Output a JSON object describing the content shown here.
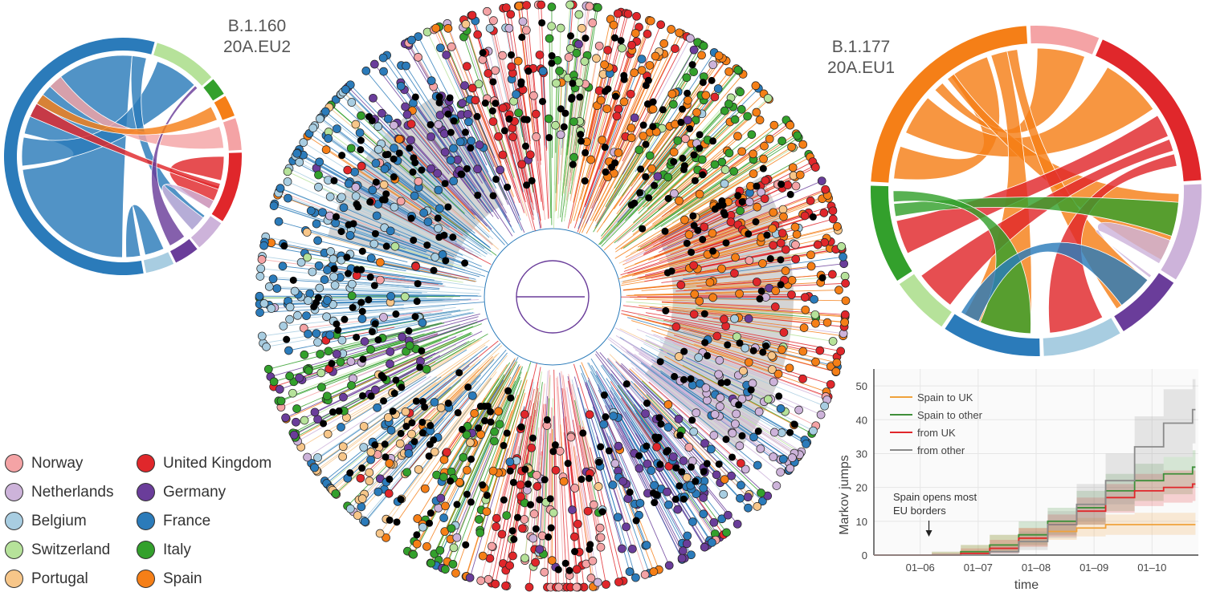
{
  "colors": {
    "Norway": "#f4a3a5",
    "Netherlands": "#cdb3da",
    "Belgium": "#a8cde1",
    "Switzerland": "#b6e29a",
    "Portugal": "#f7c689",
    "United Kingdom": "#e0272b",
    "Germany": "#6a3d9a",
    "France": "#2b7bba",
    "Italy": "#33a02c",
    "Spain": "#f57f17",
    "ancestral": "#000000",
    "clade_shade": "#d4d4d4"
  },
  "left_chord": {
    "title_line1": "B.1.160",
    "title_line2": "20A.EU2",
    "segments": [
      {
        "country": "France",
        "share": 0.59
      },
      {
        "country": "Switzerland",
        "share": 0.09
      },
      {
        "country": "Italy",
        "share": 0.025
      },
      {
        "country": "Spain",
        "share": 0.03
      },
      {
        "country": "Norway",
        "share": 0.045
      },
      {
        "country": "United Kingdom",
        "share": 0.1
      },
      {
        "country": "Netherlands",
        "share": 0.045
      },
      {
        "country": "Germany",
        "share": 0.035
      },
      {
        "country": "Belgium",
        "share": 0.04
      }
    ]
  },
  "right_chord": {
    "title_line1": "B.1.177",
    "title_line2": "20A.EU1",
    "segments": [
      {
        "country": "Norway",
        "share": 0.07
      },
      {
        "country": "United Kingdom",
        "share": 0.18
      },
      {
        "country": "Netherlands",
        "share": 0.1
      },
      {
        "country": "Germany",
        "share": 0.07
      },
      {
        "country": "Belgium",
        "share": 0.08
      },
      {
        "country": "France",
        "share": 0.1
      },
      {
        "country": "Switzerland",
        "share": 0.06
      },
      {
        "country": "Italy",
        "share": 0.1
      },
      {
        "country": "Spain",
        "share": 0.24
      }
    ]
  },
  "legend": {
    "items": [
      {
        "label": "Norway",
        "color": "#f4a3a5"
      },
      {
        "label": "Netherlands",
        "color": "#cdb3da"
      },
      {
        "label": "Belgium",
        "color": "#a8cde1"
      },
      {
        "label": "Switzerland",
        "color": "#b6e29a"
      },
      {
        "label": "Portugal",
        "color": "#f7c689"
      },
      {
        "label": "United Kingdom",
        "color": "#e0272b"
      },
      {
        "label": "Germany",
        "color": "#6a3d9a"
      },
      {
        "label": "France",
        "color": "#2b7bba"
      },
      {
        "label": "Italy",
        "color": "#33a02c"
      },
      {
        "label": "Spain",
        "color": "#f57f17"
      }
    ]
  },
  "chart_data": {
    "type": "line",
    "xlabel": "time",
    "ylabel": "Markov jumps",
    "ylim": [
      0,
      55
    ],
    "xlim": [
      0,
      5.6
    ],
    "x_ticks": [
      "01–06",
      "01–07",
      "01–08",
      "01–09",
      "01–10"
    ],
    "y_ticks": [
      0,
      10,
      20,
      30,
      40,
      50
    ],
    "grid": true,
    "legend_position": "top-left",
    "annotation": {
      "text_line1": "Spain opens most",
      "text_line2": "EU borders",
      "x": 0.95,
      "y": 5
    },
    "series": [
      {
        "name": "Spain to UK",
        "color": "#f0a23b",
        "x": [
          0,
          1,
          1.5,
          2,
          2.5,
          3,
          3.5,
          4,
          4.5,
          5,
          5.5
        ],
        "values": [
          0,
          0,
          1,
          3,
          5,
          7,
          8,
          9,
          9,
          9,
          9
        ],
        "lower": [
          0,
          0,
          0,
          1,
          2.5,
          4.5,
          5.5,
          6,
          6,
          6,
          6
        ],
        "upper": [
          0,
          1,
          3,
          6,
          8,
          10,
          11,
          12,
          12.5,
          12.5,
          12.5
        ]
      },
      {
        "name": "Spain to other",
        "color": "#3f8f3a",
        "x": [
          0,
          1,
          1.5,
          2,
          2.5,
          3,
          3.5,
          4,
          4.5,
          5,
          5.5
        ],
        "values": [
          0,
          0,
          1,
          3,
          6,
          10,
          14,
          19,
          22,
          24,
          26
        ],
        "lower": [
          0,
          0,
          0,
          1,
          3,
          6,
          9,
          13,
          16,
          18,
          20
        ],
        "upper": [
          0,
          1,
          3,
          6,
          10,
          14,
          19,
          24,
          27,
          29,
          31
        ]
      },
      {
        "name": "from UK",
        "color": "#e0272b",
        "x": [
          0,
          1,
          1.5,
          2,
          2.5,
          3,
          3.5,
          4,
          4.5,
          5,
          5.5
        ],
        "values": [
          0,
          0,
          0.5,
          2,
          5,
          9,
          13,
          17,
          19,
          20,
          21
        ],
        "lower": [
          0,
          0,
          0,
          0.5,
          2.5,
          5.5,
          9,
          12.5,
          14.5,
          15.5,
          16
        ],
        "upper": [
          0,
          0.5,
          2,
          4.5,
          8,
          12,
          17,
          21,
          24,
          25,
          25
        ]
      },
      {
        "name": "from other",
        "color": "#8a8a8a",
        "x": [
          0,
          1,
          1.5,
          2,
          2.5,
          3,
          3.5,
          4,
          4.5,
          5,
          5.5
        ],
        "values": [
          0,
          0,
          0,
          1,
          4,
          9,
          15,
          22,
          32,
          39,
          43
        ],
        "lower": [
          0,
          0,
          0,
          0,
          1.5,
          5,
          10,
          15,
          22,
          29,
          33
        ],
        "upper": [
          0,
          0.5,
          1,
          3,
          7,
          13,
          21,
          30,
          41,
          49,
          52
        ]
      }
    ]
  }
}
